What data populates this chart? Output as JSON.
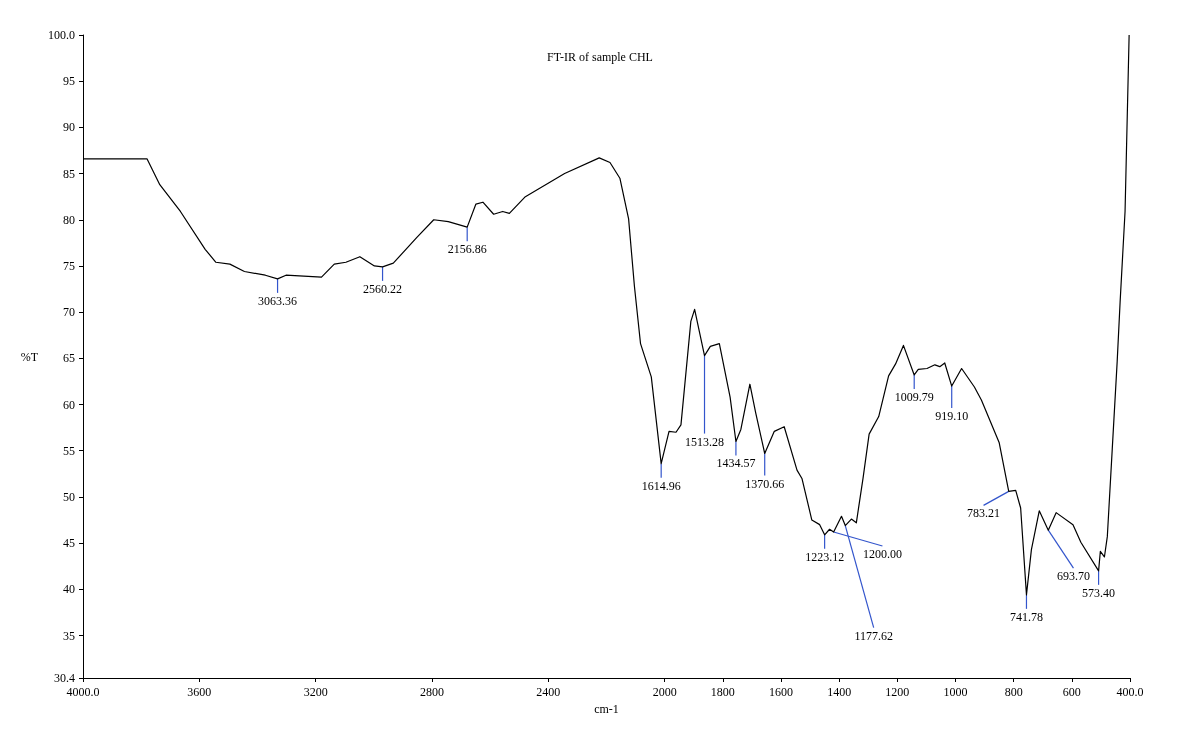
{
  "chart_data": {
    "type": "line",
    "title": "FT-IR of sample CHL",
    "xlabel": "cm-1",
    "ylabel": "%T",
    "xlim": [
      4000,
      400
    ],
    "xticks": [
      {
        "value": 4000,
        "label": "4000.0"
      },
      3600,
      3200,
      2800,
      2400,
      2000,
      1800,
      1600,
      1400,
      1200,
      1000,
      800,
      600,
      {
        "value": 400,
        "label": "400.0"
      }
    ],
    "ylim": [
      30.4,
      100
    ],
    "yticks": [
      30.4,
      35,
      40,
      45,
      50,
      55,
      60,
      65,
      70,
      75,
      80,
      85,
      90,
      95,
      {
        "value": 100,
        "label": "100.0"
      }
    ],
    "x": [
      4000,
      3780,
      3736,
      3665,
      3580,
      3543,
      3495,
      3445,
      3373,
      3331,
      3302,
      3180,
      3136,
      3096,
      3048,
      2998,
      2970,
      2933,
      2852,
      2794,
      2744,
      2679,
      2649,
      2625,
      2588,
      2557,
      2534,
      2479,
      2344,
      2225,
      2188,
      2154,
      2124,
      2104,
      2083,
      2046,
      2012,
      1985,
      1961,
      1944,
      1910,
      1897,
      1863,
      1843,
      1812,
      1775,
      1755,
      1738,
      1707,
      1687,
      1656,
      1623,
      1589,
      1545,
      1528,
      1494,
      1467,
      1450,
      1433,
      1419,
      1392,
      1379,
      1358,
      1341,
      1318,
      1297,
      1264,
      1230,
      1206,
      1179,
      1142,
      1128,
      1098,
      1071,
      1054,
      1037,
      1013,
      979,
      935,
      911,
      850,
      817,
      793,
      776,
      756,
      739,
      712,
      681,
      654,
      596,
      569,
      508,
      502,
      488,
      478,
      461,
      444,
      434,
      417,
      403
    ],
    "series": [
      {
        "color": "#000000",
        "values": [
          86.6,
          86.6,
          83.8,
          80.9,
          76.8,
          75.4,
          75.2,
          74.4,
          74.0,
          73.6,
          74.0,
          73.8,
          75.2,
          75.4,
          76.0,
          75.0,
          74.9,
          75.3,
          78.1,
          80.0,
          79.8,
          79.2,
          81.7,
          81.9,
          80.6,
          80.9,
          80.7,
          82.5,
          85.0,
          86.7,
          86.2,
          84.5,
          80.1,
          72.8,
          66.6,
          63.0,
          53.6,
          57.1,
          57.0,
          57.8,
          69.0,
          70.3,
          65.3,
          66.3,
          66.6,
          60.8,
          56.0,
          57.3,
          62.2,
          59.1,
          54.7,
          57.1,
          57.6,
          52.9,
          52.0,
          47.5,
          47.0,
          45.9,
          46.5,
          46.2,
          47.9,
          46.9,
          47.6,
          47.2,
          52.0,
          56.8,
          58.7,
          63.1,
          64.4,
          66.4,
          63.2,
          63.8,
          63.9,
          64.3,
          64.1,
          64.5,
          62.0,
          63.9,
          61.9,
          60.5,
          55.9,
          50.6,
          50.7,
          48.8,
          39.4,
          44.3,
          48.5,
          46.4,
          48.3,
          47.0,
          45.1,
          42.0,
          44.1,
          43.5,
          45.7,
          55.2,
          64.7,
          71.1,
          80.9,
          100.0
        ]
      }
    ],
    "annotations": [
      {
        "text": "3063.36",
        "x": 3331,
        "y": 73.6
      },
      {
        "text": "2560.22",
        "x": 2970,
        "y": 74.9
      },
      {
        "text": "2156.86",
        "x": 2679,
        "y": 79.2
      },
      {
        "text": "1614.96",
        "x": 2012,
        "y": 53.6
      },
      {
        "text": "1513.28",
        "x": 1863,
        "y": 65.3
      },
      {
        "text": "1434.57",
        "x": 1755,
        "y": 56.0
      },
      {
        "text": "1370.66",
        "x": 1656,
        "y": 54.7
      },
      {
        "text": "1223.12",
        "x": 1450,
        "y": 45.9
      },
      {
        "text": "1200.00",
        "x": 1419,
        "y": 46.2
      },
      {
        "text": "1177.62",
        "x": 1379,
        "y": 46.9
      },
      {
        "text": "1009.79",
        "x": 1142,
        "y": 63.2
      },
      {
        "text": "919.10",
        "x": 1013,
        "y": 62.0
      },
      {
        "text": "783.21",
        "x": 817,
        "y": 50.6
      },
      {
        "text": "741.78",
        "x": 756,
        "y": 39.4
      },
      {
        "text": "693.70",
        "x": 681,
        "y": 46.4
      },
      {
        "text": "573.40",
        "x": 508,
        "y": 42.0
      }
    ]
  }
}
